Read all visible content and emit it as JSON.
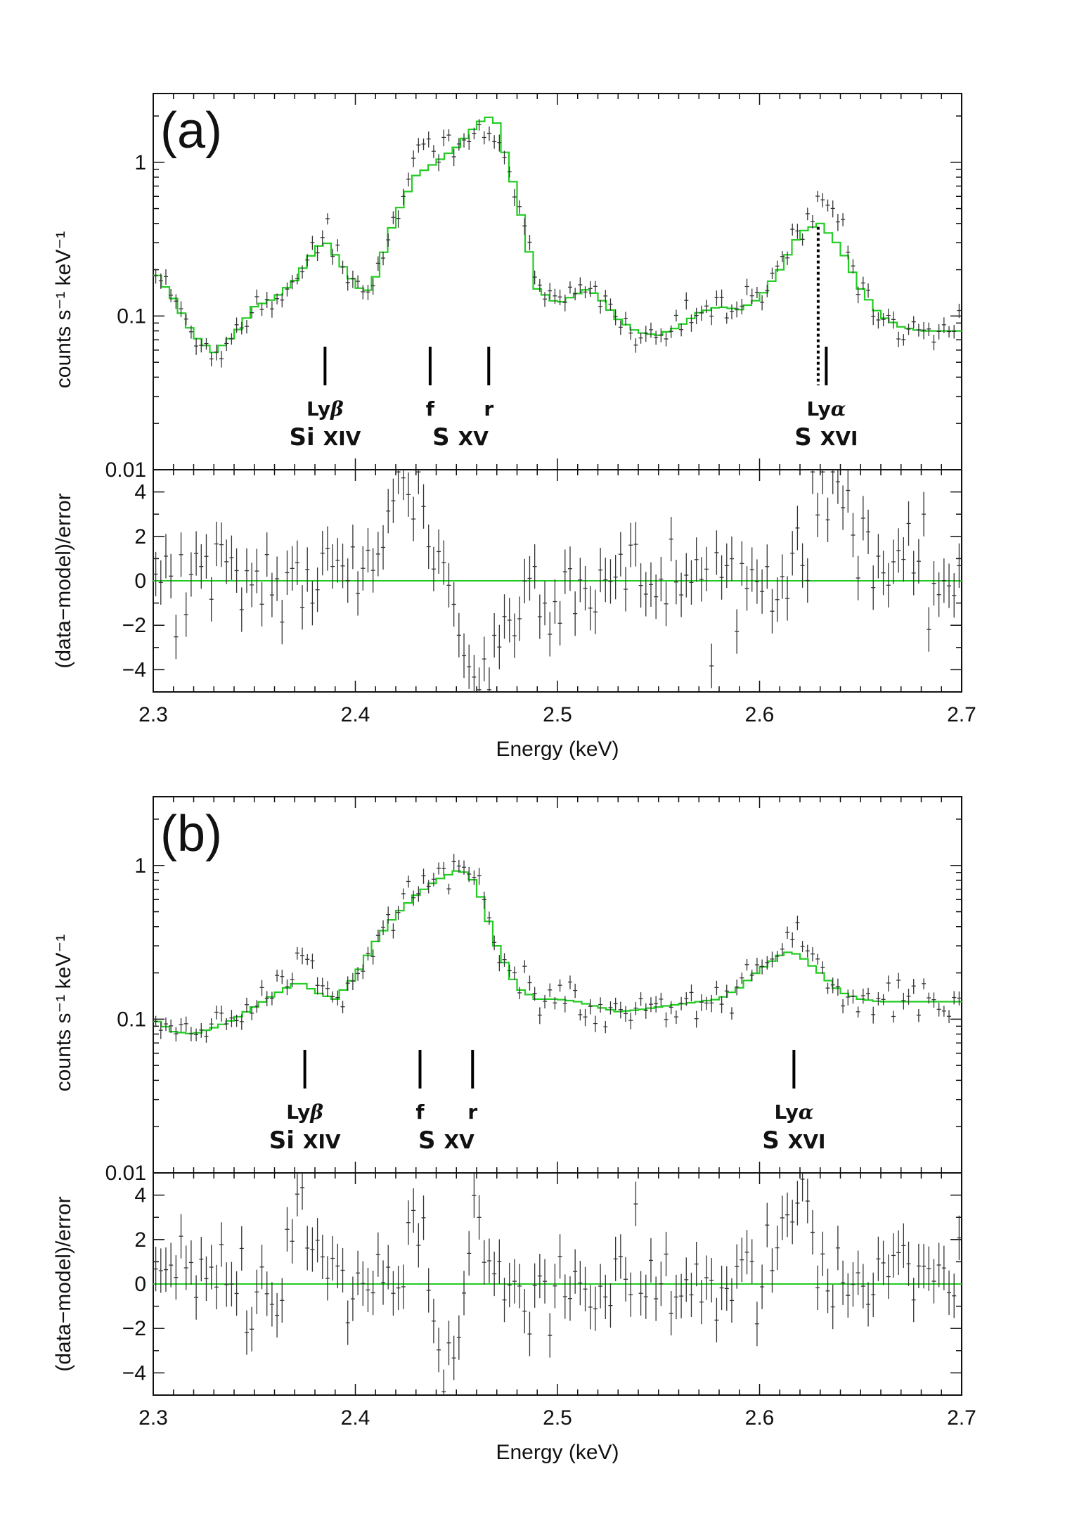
{
  "figure": {
    "xlabel": "Energy (keV)",
    "ylabel_top": "counts s⁻¹ keV⁻¹",
    "ylabel_bottom": "(data−model)/error",
    "colors": {
      "model": "#22cc22",
      "data": "#333333",
      "axis": "#111111"
    }
  },
  "chart_data": [
    {
      "panel_label": "(a)",
      "type": "line",
      "xlim": [
        2.3,
        2.7
      ],
      "xticks": [
        2.3,
        2.4,
        2.5,
        2.6,
        2.7
      ],
      "xtick_labels": [
        "2.3",
        "2.4",
        "2.5",
        "2.6",
        "2.7"
      ],
      "spectrum": {
        "yscale": "log",
        "ylim": [
          0.01,
          2.8
        ],
        "yticks": [
          0.01,
          0.1,
          1
        ],
        "ytick_labels": [
          "0.01",
          "0.1",
          "1"
        ],
        "model": {
          "x": [
            2.3,
            2.31,
            2.32,
            2.33,
            2.34,
            2.35,
            2.36,
            2.37,
            2.38,
            2.385,
            2.39,
            2.4,
            2.405,
            2.41,
            2.42,
            2.43,
            2.44,
            2.45,
            2.46,
            2.465,
            2.47,
            2.48,
            2.49,
            2.5,
            2.51,
            2.515,
            2.52,
            2.53,
            2.54,
            2.55,
            2.56,
            2.57,
            2.58,
            2.59,
            2.6,
            2.61,
            2.62,
            2.63,
            2.64,
            2.65,
            2.66,
            2.67,
            2.68,
            2.69,
            2.7
          ],
          "y": [
            0.2,
            0.13,
            0.075,
            0.058,
            0.075,
            0.115,
            0.13,
            0.17,
            0.27,
            0.31,
            0.25,
            0.16,
            0.14,
            0.18,
            0.45,
            0.82,
            1.0,
            1.25,
            1.75,
            2.0,
            1.8,
            0.6,
            0.15,
            0.12,
            0.14,
            0.15,
            0.135,
            0.095,
            0.078,
            0.075,
            0.085,
            0.105,
            0.115,
            0.11,
            0.13,
            0.2,
            0.35,
            0.4,
            0.28,
            0.15,
            0.1,
            0.085,
            0.08,
            0.08,
            0.08
          ]
        },
        "data_x_step": 0.0025,
        "excess_regions": [
          {
            "center": 2.385,
            "width": 0.006,
            "amp": 0.15
          },
          {
            "center": 2.433,
            "width": 0.009,
            "amp": 0.3
          },
          {
            "center": 2.466,
            "width": 0.006,
            "amp": -0.15
          },
          {
            "center": 2.636,
            "width": 0.008,
            "amp": 0.5
          }
        ]
      },
      "residuals": {
        "ylim": [
          -5,
          5
        ],
        "yticks": [
          -4,
          -2,
          0,
          2,
          4
        ],
        "ytick_labels": [
          "−4",
          "−2",
          "0",
          "2",
          "4"
        ],
        "features": [
          {
            "center": 2.425,
            "width": 0.012,
            "amp": 4.2
          },
          {
            "center": 2.462,
            "width": 0.01,
            "amp": -4.5
          },
          {
            "center": 2.637,
            "width": 0.012,
            "amp": 4.3
          }
        ]
      },
      "lines": [
        {
          "energy": 2.385,
          "top": "Ly",
          "greek": "β",
          "element": "Si",
          "ion": "XIV"
        },
        {
          "energy": 2.437,
          "top": "f",
          "element": "S",
          "ion": "XV",
          "group_center": 2.452
        },
        {
          "energy": 2.466,
          "top": "r"
        },
        {
          "energy": 2.633,
          "top": "Ly",
          "greek": "α",
          "element": "S",
          "ion": "XVI",
          "dotted_energy": 2.629
        }
      ]
    },
    {
      "panel_label": "(b)",
      "type": "line",
      "xlim": [
        2.3,
        2.7
      ],
      "xticks": [
        2.3,
        2.4,
        2.5,
        2.6,
        2.7
      ],
      "xtick_labels": [
        "2.3",
        "2.4",
        "2.5",
        "2.6",
        "2.7"
      ],
      "spectrum": {
        "yscale": "log",
        "ylim": [
          0.01,
          2.8
        ],
        "yticks": [
          0.01,
          0.1,
          1
        ],
        "ytick_labels": [
          "0.01",
          "0.1",
          "1"
        ],
        "model": {
          "x": [
            2.3,
            2.31,
            2.32,
            2.33,
            2.34,
            2.35,
            2.36,
            2.37,
            2.375,
            2.38,
            2.39,
            2.4,
            2.41,
            2.42,
            2.43,
            2.44,
            2.45,
            2.455,
            2.46,
            2.47,
            2.48,
            2.49,
            2.5,
            2.51,
            2.52,
            2.53,
            2.54,
            2.55,
            2.56,
            2.57,
            2.58,
            2.59,
            2.6,
            2.61,
            2.615,
            2.62,
            2.63,
            2.64,
            2.65,
            2.66,
            2.68,
            2.7
          ],
          "y": [
            0.1,
            0.083,
            0.08,
            0.088,
            0.1,
            0.12,
            0.145,
            0.17,
            0.17,
            0.15,
            0.135,
            0.19,
            0.32,
            0.48,
            0.64,
            0.8,
            0.92,
            0.9,
            0.75,
            0.3,
            0.16,
            0.135,
            0.135,
            0.13,
            0.12,
            0.112,
            0.115,
            0.12,
            0.125,
            0.13,
            0.135,
            0.16,
            0.21,
            0.26,
            0.275,
            0.26,
            0.2,
            0.15,
            0.135,
            0.13,
            0.13,
            0.13
          ]
        },
        "data_x_step": 0.0025,
        "excess_regions": [
          {
            "center": 2.374,
            "width": 0.005,
            "amp": 0.35
          },
          {
            "center": 2.43,
            "width": 0.01,
            "amp": 0.12
          },
          {
            "center": 2.458,
            "width": 0.005,
            "amp": 0.15
          },
          {
            "center": 2.617,
            "width": 0.005,
            "amp": 0.4
          }
        ]
      },
      "residuals": {
        "ylim": [
          -5,
          5
        ],
        "yticks": [
          -4,
          -2,
          0,
          2,
          4
        ],
        "ytick_labels": [
          "−4",
          "−2",
          "0",
          "2",
          "4"
        ],
        "features": [
          {
            "center": 2.373,
            "width": 0.005,
            "amp": 3.2
          },
          {
            "center": 2.43,
            "width": 0.004,
            "amp": 3.5
          },
          {
            "center": 2.446,
            "width": 0.005,
            "amp": -4.0
          },
          {
            "center": 2.459,
            "width": 0.003,
            "amp": 3.8
          },
          {
            "center": 2.617,
            "width": 0.006,
            "amp": 3.8
          }
        ]
      },
      "lines": [
        {
          "energy": 2.375,
          "top": "Ly",
          "greek": "β",
          "element": "Si",
          "ion": "XIV"
        },
        {
          "energy": 2.432,
          "top": "f",
          "element": "S",
          "ion": "XV",
          "group_center": 2.445
        },
        {
          "energy": 2.458,
          "top": "r"
        },
        {
          "energy": 2.617,
          "top": "Ly",
          "greek": "α",
          "element": "S",
          "ion": "XVI"
        }
      ]
    }
  ]
}
